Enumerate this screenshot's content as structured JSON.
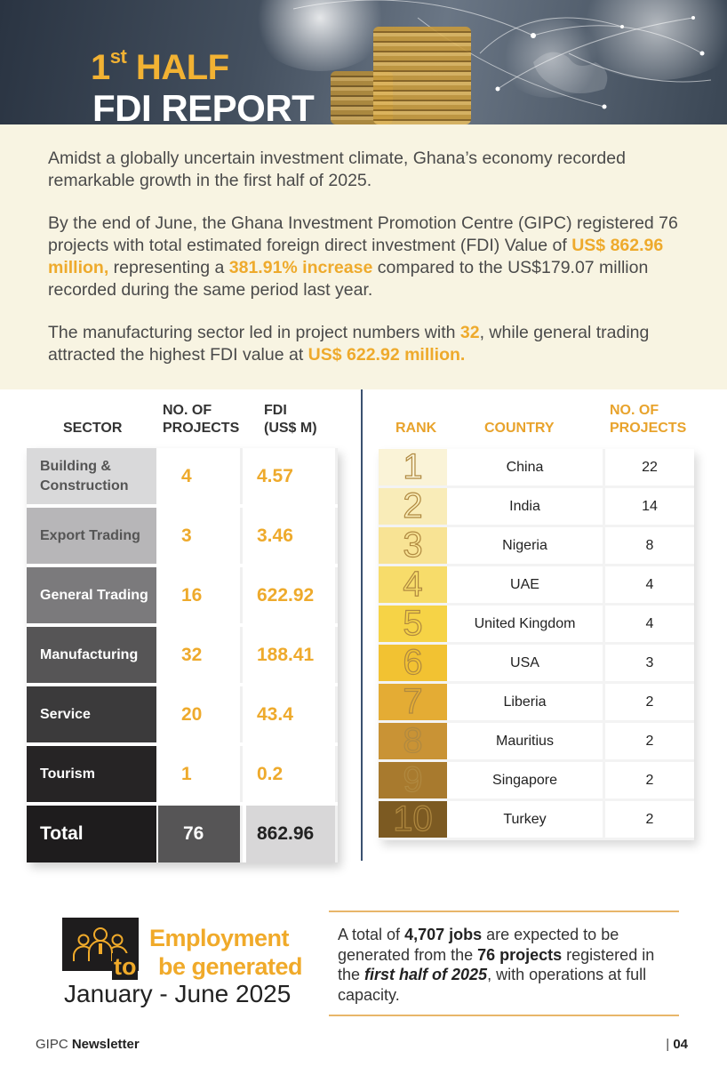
{
  "header": {
    "title_line1_num": "1",
    "title_line1_sup": "st",
    "title_line1_rest": " HALF",
    "title_line2": "FDI REPORT"
  },
  "intro": {
    "p1": "Amidst a globally uncertain investment climate, Ghana’s economy recorded remarkable growth in the first half of 2025.",
    "p2_a": "By the end of June, the Ghana Investment Promotion Centre (GIPC) registered 76 projects with total estimated foreign direct investment (FDI) Value of ",
    "p2_hl1": "US$ 862.96 million,",
    "p2_b": " representing a ",
    "p2_hl2": "381.91% increase",
    "p2_c": " compared to the US$179.07 million recorded during the same period last year.",
    "p3_a": "The manufacturing sector led in project numbers with ",
    "p3_hl1": "32",
    "p3_b": ", while general trading attracted the highest FDI value at ",
    "p3_hl2": "US$ 622.92 million."
  },
  "sectors": {
    "headers": {
      "sector": "SECTOR",
      "projects_l1": "NO. OF",
      "projects_l2": "PROJECTS",
      "fdi_l1": "FDI",
      "fdi_l2": "(US$ M)"
    },
    "rows": [
      {
        "sector": "Building & Construction",
        "projects": "4",
        "fdi": "4.57",
        "bg": "#d9d9da",
        "fg": "#555555"
      },
      {
        "sector": "Export Trading",
        "projects": "3",
        "fdi": "3.46",
        "bg": "#b7b6b8",
        "fg": "#555555"
      },
      {
        "sector": "General Trading",
        "projects": "16",
        "fdi": "622.92",
        "bg": "#7b7a7c",
        "fg": "#ffffff"
      },
      {
        "sector": "Manufacturing",
        "projects": "32",
        "fdi": "188.41",
        "bg": "#565556",
        "fg": "#ffffff"
      },
      {
        "sector": "Service",
        "projects": "20",
        "fdi": "43.4",
        "bg": "#3b3a3b",
        "fg": "#ffffff"
      },
      {
        "sector": "Tourism",
        "projects": "1",
        "fdi": "0.2",
        "bg": "#262425",
        "fg": "#ffffff"
      }
    ],
    "total": {
      "label": "Total",
      "projects": "76",
      "fdi": "862.96"
    }
  },
  "ranking": {
    "headers": {
      "rank": "RANK",
      "country": "COUNTRY",
      "projects_l1": "NO. OF",
      "projects_l2": "PROJECTS"
    },
    "rows": [
      {
        "rank": "1",
        "country": "China",
        "projects": "22",
        "color": "#faf3d7"
      },
      {
        "rank": "2",
        "country": "India",
        "projects": "14",
        "color": "#f9ecb8"
      },
      {
        "rank": "3",
        "country": "Nigeria",
        "projects": "8",
        "color": "#f8e394"
      },
      {
        "rank": "4",
        "country": "UAE",
        "projects": "4",
        "color": "#f7dc6a"
      },
      {
        "rank": "5",
        "country": "United Kingdom",
        "projects": "4",
        "color": "#f6d346"
      },
      {
        "rank": "6",
        "country": "USA",
        "projects": "3",
        "color": "#f2c232"
      },
      {
        "rank": "7",
        "country": "Liberia",
        "projects": "2",
        "color": "#e4ac34"
      },
      {
        "rank": "8",
        "country": "Mauritius",
        "projects": "2",
        "color": "#c99335"
      },
      {
        "rank": "9",
        "country": "Singapore",
        "projects": "2",
        "color": "#a87a2e"
      },
      {
        "rank": "10",
        "country": "Turkey",
        "projects": "2",
        "color": "#7c5a22"
      }
    ]
  },
  "employment": {
    "title_line1": "Employment",
    "title_to": "to",
    "title_line2": "be generated",
    "period": "January - June 2025",
    "text_a": "A total of ",
    "text_jobs": "4,707 jobs",
    "text_b": " are expected to be generated from the ",
    "text_projects": "76 projects",
    "text_c": " registered in the ",
    "text_half": "first half of 2025",
    "text_d": ", with operations at full capacity."
  },
  "footer": {
    "left_a": "GIPC ",
    "left_b": "Newsletter",
    "right_sep": "| ",
    "right_page": "04"
  },
  "colors": {
    "accent": "#eeaa2c",
    "intro_bg": "#f8f4e2",
    "dark": "#1e1c1d"
  },
  "icons": [
    "people-group-icon",
    "world-network-background"
  ]
}
